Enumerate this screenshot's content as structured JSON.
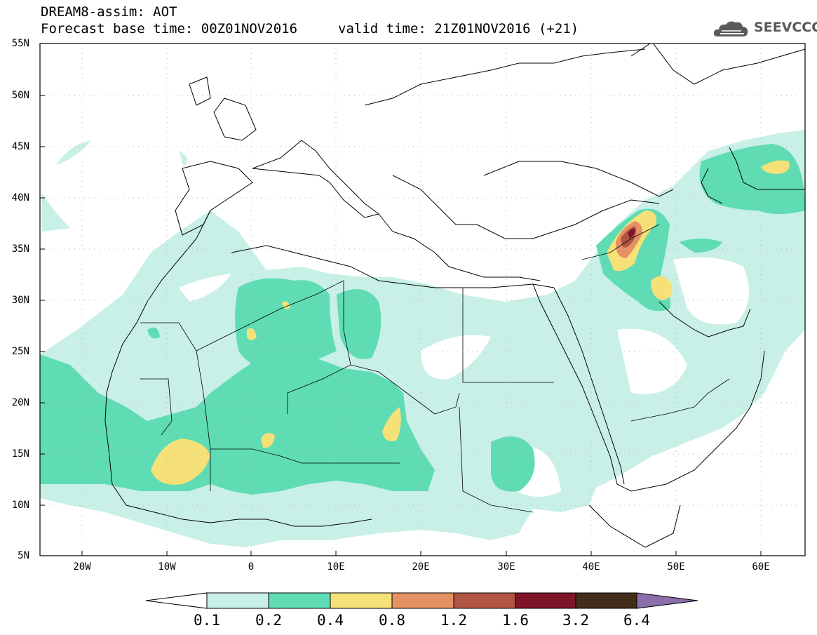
{
  "header": {
    "line1": "DREAM8-assim: AOT",
    "line2_base": "Forecast base time: 00Z01NOV2016",
    "line2_valid": "valid time: 21Z01NOV2016 (+21)"
  },
  "logo": {
    "text": "SEEVCCC",
    "icon": "cloud-icon"
  },
  "axes": {
    "lat_labels": [
      "55N",
      "50N",
      "45N",
      "40N",
      "35N",
      "30N",
      "25N",
      "20N",
      "15N",
      "10N",
      "5N"
    ],
    "lon_labels": [
      "20W",
      "10W",
      "0",
      "10E",
      "20E",
      "30E",
      "40E",
      "50E",
      "60E"
    ],
    "lat_range": [
      5,
      55
    ],
    "lon_range": [
      -25,
      65
    ]
  },
  "colorbar": {
    "labels": [
      "0.1",
      "0.2",
      "0.4",
      "0.8",
      "1.2",
      "1.6",
      "3.2",
      "6.4"
    ],
    "colors": [
      "#ffffff",
      "#c8f0e6",
      "#5fdcb4",
      "#f5e178",
      "#e69164",
      "#af5541",
      "#7d1428",
      "#412d19",
      "#8c6eaa"
    ]
  },
  "colors": {
    "aot_0_1": "#c8f0e6",
    "aot_0_2": "#5fdcb4",
    "aot_0_4": "#f5e178",
    "aot_0_8": "#e69164",
    "aot_1_2": "#af5541",
    "aot_1_6": "#7d1428"
  }
}
